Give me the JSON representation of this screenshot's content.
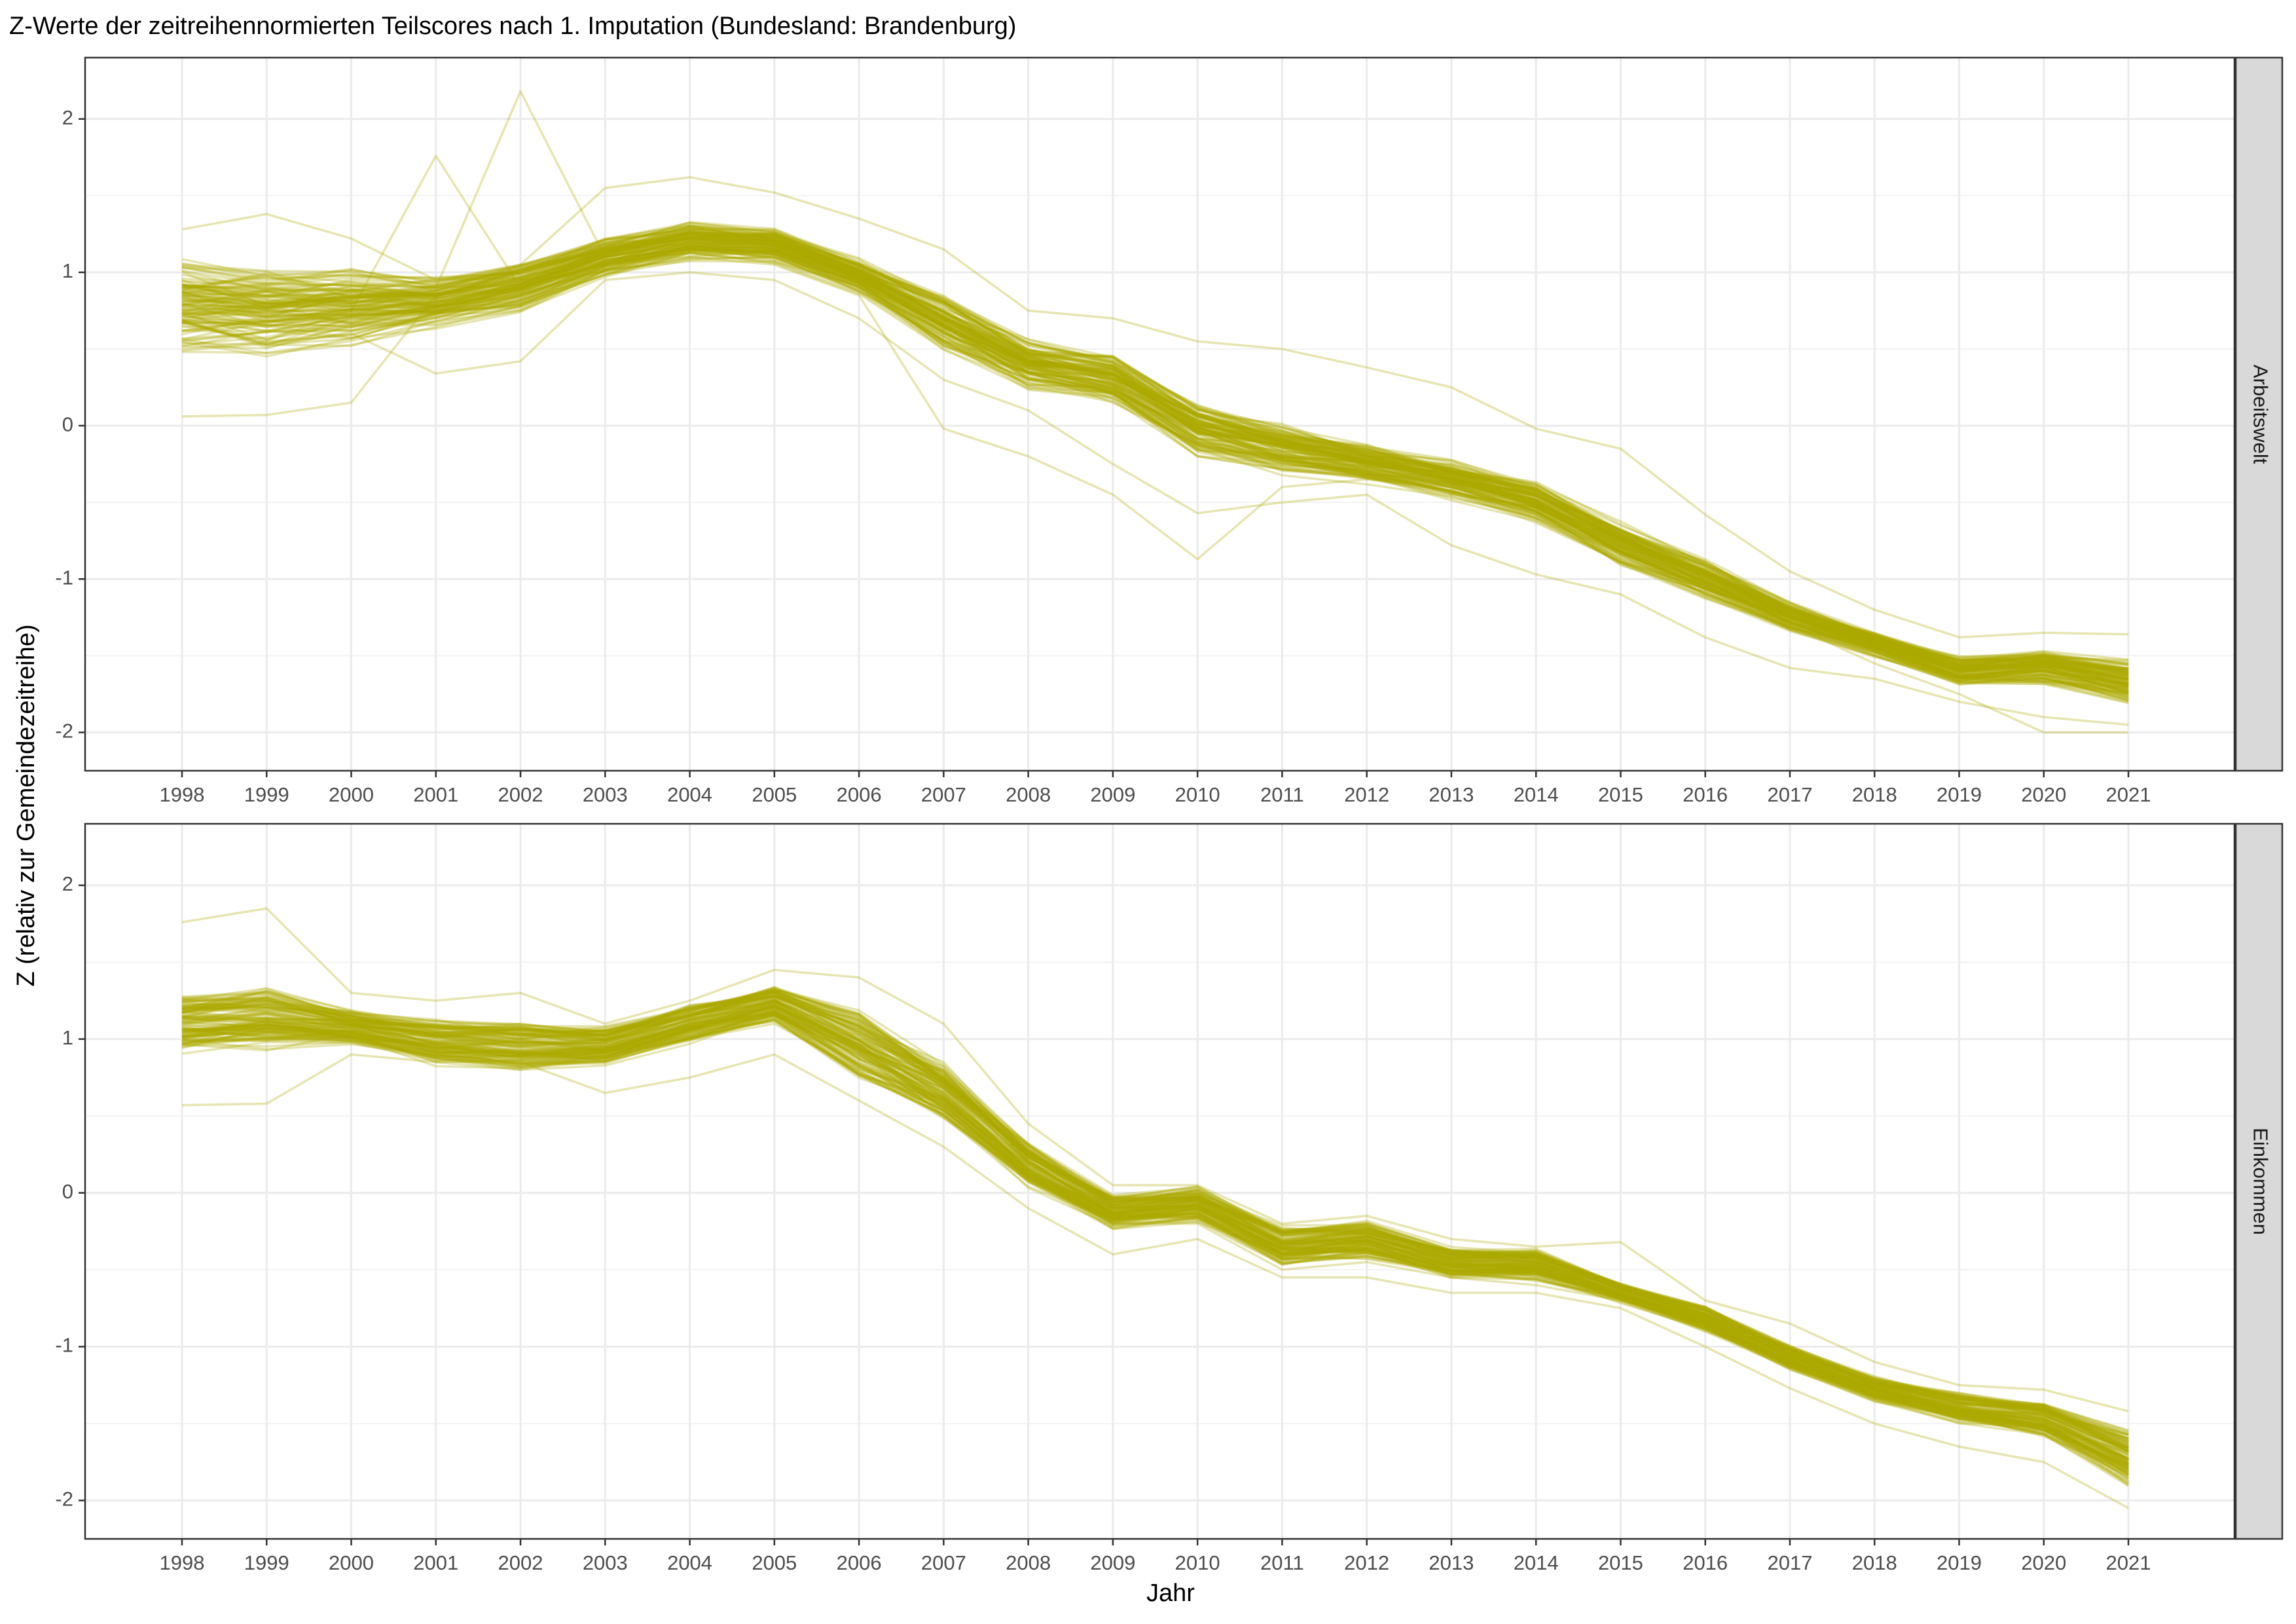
{
  "chart_data": {
    "type": "line",
    "title": "Z-Werte der zeitreihennormierten Teilscores nach 1. Imputation (Bundesland: Brandenburg)",
    "xlabel": "Jahr",
    "ylabel": "Z (relativ zur Gemeindezeitreihe)",
    "x": [
      1998,
      1999,
      2000,
      2001,
      2002,
      2003,
      2004,
      2005,
      2006,
      2007,
      2008,
      2009,
      2010,
      2011,
      2012,
      2013,
      2014,
      2015,
      2016,
      2017,
      2018,
      2019,
      2020,
      2021
    ],
    "x_tick_labels": [
      "1998",
      "1999",
      "2000",
      "2001",
      "2002",
      "2003",
      "2004",
      "2005",
      "2006",
      "2007",
      "2008",
      "2009",
      "2010",
      "2011",
      "2012",
      "2013",
      "2014",
      "2015",
      "2016",
      "2017",
      "2018",
      "2019",
      "2020",
      "2021"
    ],
    "y_ticks": [
      -2,
      -1,
      0,
      1,
      2
    ],
    "y_tick_labels": [
      "-2",
      "-1",
      "0",
      "1",
      "2"
    ],
    "ylim": [
      -2.25,
      2.4
    ],
    "grid": true,
    "line_color": "#ADA800",
    "line_opacity": 0.3,
    "panels": [
      {
        "facet": "Arbeitswelt",
        "band_low": [
          0.3,
          0.3,
          0.4,
          0.55,
          0.65,
          0.9,
          1.0,
          1.0,
          0.8,
          0.4,
          0.15,
          0.05,
          -0.3,
          -0.4,
          -0.45,
          -0.55,
          -0.7,
          -1.0,
          -1.2,
          -1.4,
          -1.55,
          -1.75,
          -1.75,
          -1.9
        ],
        "band_high": [
          1.25,
          1.2,
          1.15,
          1.05,
          1.15,
          1.3,
          1.4,
          1.35,
          1.15,
          0.95,
          0.65,
          0.55,
          0.25,
          0.1,
          -0.05,
          -0.15,
          -0.3,
          -0.55,
          -0.8,
          -1.1,
          -1.3,
          -1.45,
          -1.4,
          -1.45
        ],
        "series_count": 120,
        "outliers": [
          [
            0.06,
            0.07,
            0.15,
            0.85,
            0.95,
            1.0,
            1.1,
            1.05,
            0.85,
            -0.02,
            -0.2,
            -0.45,
            -0.87,
            -0.4,
            -0.35,
            -0.4,
            -0.55,
            -0.8,
            -1.0,
            -1.3,
            -1.55,
            -1.75,
            -2.0,
            -2.0
          ],
          [
            0.9,
            0.85,
            0.8,
            0.9,
            2.18,
            1.1,
            1.2,
            1.15,
            0.95,
            0.6,
            0.4,
            0.3,
            0.1,
            0.0,
            -0.2,
            -0.3,
            -0.45,
            -0.7,
            -1.05,
            -1.25,
            -1.45,
            -1.6,
            -1.55,
            -1.6
          ],
          [
            0.7,
            0.8,
            0.75,
            1.76,
            0.9,
            1.05,
            1.15,
            1.1,
            0.9,
            0.55,
            0.3,
            0.2,
            0.0,
            -0.1,
            -0.25,
            -0.35,
            -0.5,
            -0.75,
            -1.0,
            -1.2,
            -1.4,
            -1.55,
            -1.6,
            -1.7
          ],
          [
            1.28,
            1.38,
            1.22,
            0.95,
            1.05,
            1.55,
            1.62,
            1.52,
            1.35,
            1.15,
            0.75,
            0.7,
            0.55,
            0.5,
            0.38,
            0.25,
            -0.02,
            -0.15,
            -0.58,
            -0.95,
            -1.2,
            -1.38,
            -1.35,
            -1.36
          ],
          [
            0.5,
            0.55,
            0.6,
            0.34,
            0.42,
            0.95,
            1.0,
            0.95,
            0.7,
            0.3,
            0.1,
            -0.25,
            -0.57,
            -0.5,
            -0.45,
            -0.78,
            -0.97,
            -1.1,
            -1.38,
            -1.58,
            -1.65,
            -1.8,
            -1.9,
            -1.95
          ]
        ]
      },
      {
        "facet": "Einkommen",
        "band_low": [
          0.8,
          0.8,
          0.9,
          0.75,
          0.7,
          0.75,
          0.9,
          1.05,
          0.6,
          0.35,
          -0.05,
          -0.3,
          -0.25,
          -0.55,
          -0.5,
          -0.62,
          -0.63,
          -0.75,
          -0.95,
          -1.2,
          -1.4,
          -1.55,
          -1.65,
          -2.0
        ],
        "band_high": [
          1.4,
          1.45,
          1.25,
          1.2,
          1.2,
          1.15,
          1.3,
          1.4,
          1.3,
          0.95,
          0.4,
          0.05,
          0.1,
          -0.15,
          -0.12,
          -0.3,
          -0.3,
          -0.55,
          -0.7,
          -0.95,
          -1.15,
          -1.25,
          -1.3,
          -1.45
        ],
        "series_count": 120,
        "outliers": [
          [
            0.57,
            0.58,
            0.9,
            0.85,
            0.8,
            0.9,
            1.0,
            1.1,
            0.8,
            0.5,
            0.1,
            -0.2,
            -0.2,
            -0.5,
            -0.45,
            -0.55,
            -0.6,
            -0.7,
            -0.9,
            -1.1,
            -1.3,
            -1.45,
            -1.55,
            -1.8
          ],
          [
            1.76,
            1.85,
            1.3,
            1.25,
            1.3,
            1.1,
            1.25,
            1.45,
            1.4,
            1.1,
            0.45,
            0.05,
            0.05,
            -0.2,
            -0.15,
            -0.3,
            -0.35,
            -0.32,
            -0.7,
            -0.85,
            -1.1,
            -1.25,
            -1.28,
            -1.42
          ],
          [
            1.0,
            1.0,
            1.0,
            0.9,
            0.85,
            0.65,
            0.75,
            0.9,
            0.6,
            0.3,
            -0.1,
            -0.4,
            -0.3,
            -0.55,
            -0.55,
            -0.65,
            -0.65,
            -0.75,
            -1.0,
            -1.27,
            -1.5,
            -1.65,
            -1.75,
            -2.05
          ]
        ]
      }
    ]
  }
}
